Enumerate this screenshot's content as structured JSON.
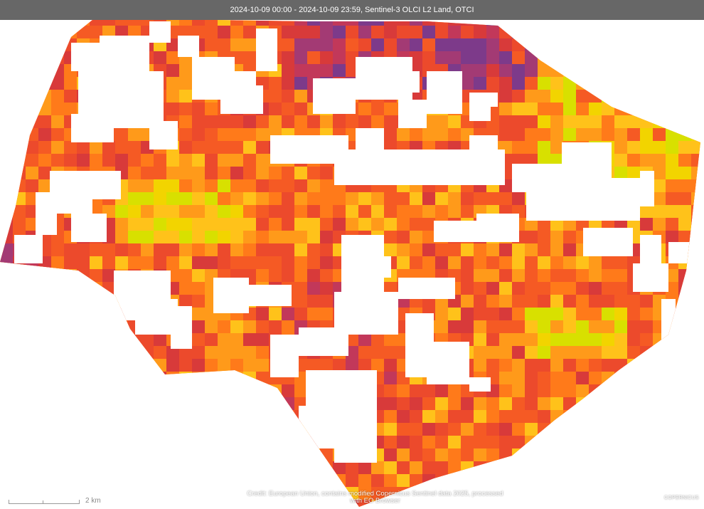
{
  "header": {
    "title": "2024-10-09 00:00 - 2024-10-09 23:59, Sentinel-3 OLCI L2 Land, OTCI"
  },
  "map": {
    "layer": "OTCI",
    "palette": [
      "#d8e000",
      "#f2d400",
      "#ffc21a",
      "#ff9a1a",
      "#ff7a1a",
      "#f55a24",
      "#ec4a2c",
      "#d83a3a",
      "#c2385a",
      "#a33a74",
      "#7d3a8a",
      "#4f3a9a"
    ],
    "no_data_color": "#ffffff"
  },
  "scale_bar": {
    "label": "2 km"
  },
  "credit": {
    "line1": "Credit: European Union, contains modified Copernicus Sentinel data 2025, processed",
    "line2": "with EO Browser"
  },
  "logo": {
    "text": "COPERNICUS",
    "icon": "copernicus-logo-icon"
  }
}
